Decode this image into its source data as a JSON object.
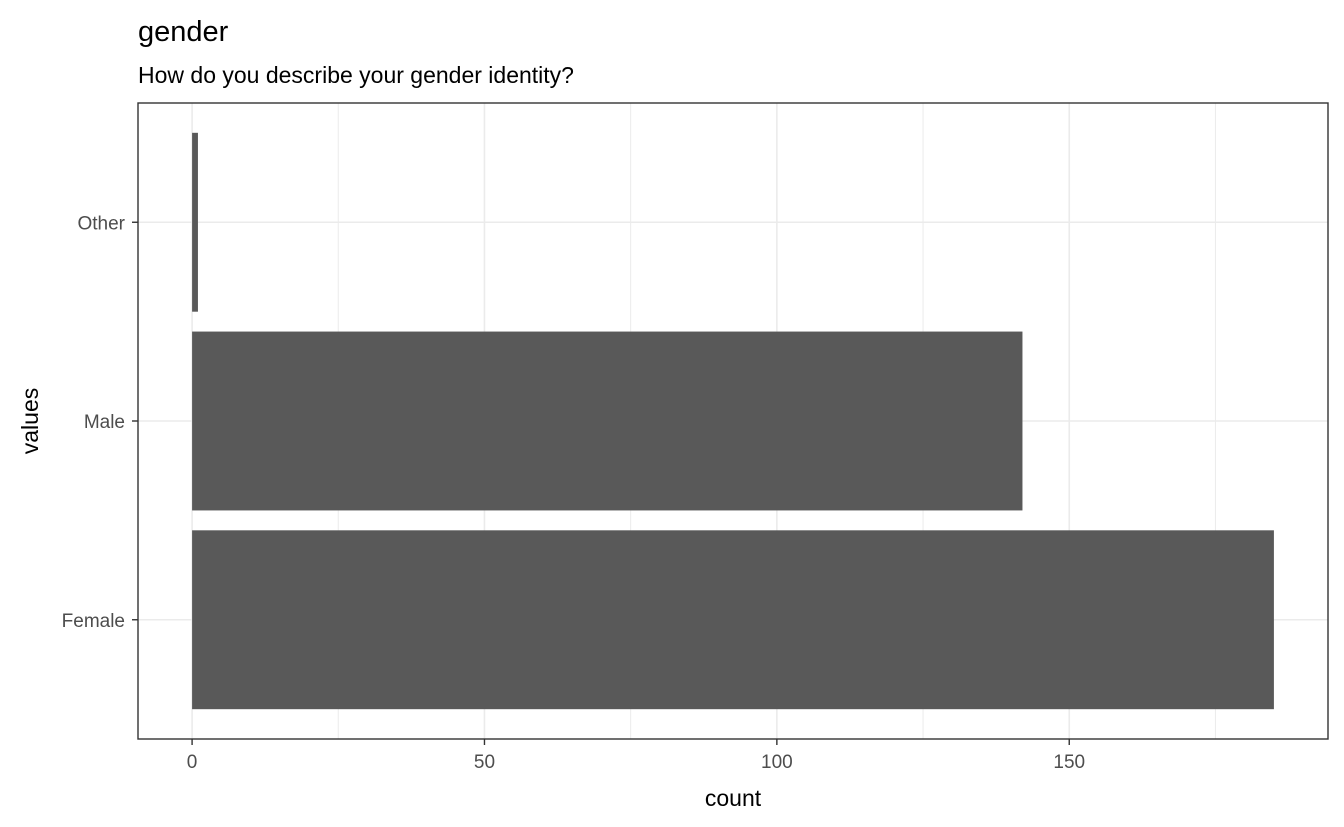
{
  "chart_data": {
    "type": "bar",
    "orientation": "horizontal",
    "title": "gender",
    "subtitle": "How do you describe your gender identity?",
    "xlabel": "count",
    "ylabel": "values",
    "categories": [
      "Female",
      "Male",
      "Other"
    ],
    "values": [
      185,
      142,
      1
    ],
    "xlim": [
      -9.25,
      194.25
    ],
    "xticks": [
      0,
      50,
      100,
      150
    ],
    "xticks_minor": [
      25,
      75,
      125,
      175
    ],
    "grid": true,
    "legend": "none",
    "colors": {
      "bar": "#595959",
      "grid": "#ebebeb",
      "panel_border": "#333333",
      "tick_label": "#4d4d4d"
    }
  }
}
